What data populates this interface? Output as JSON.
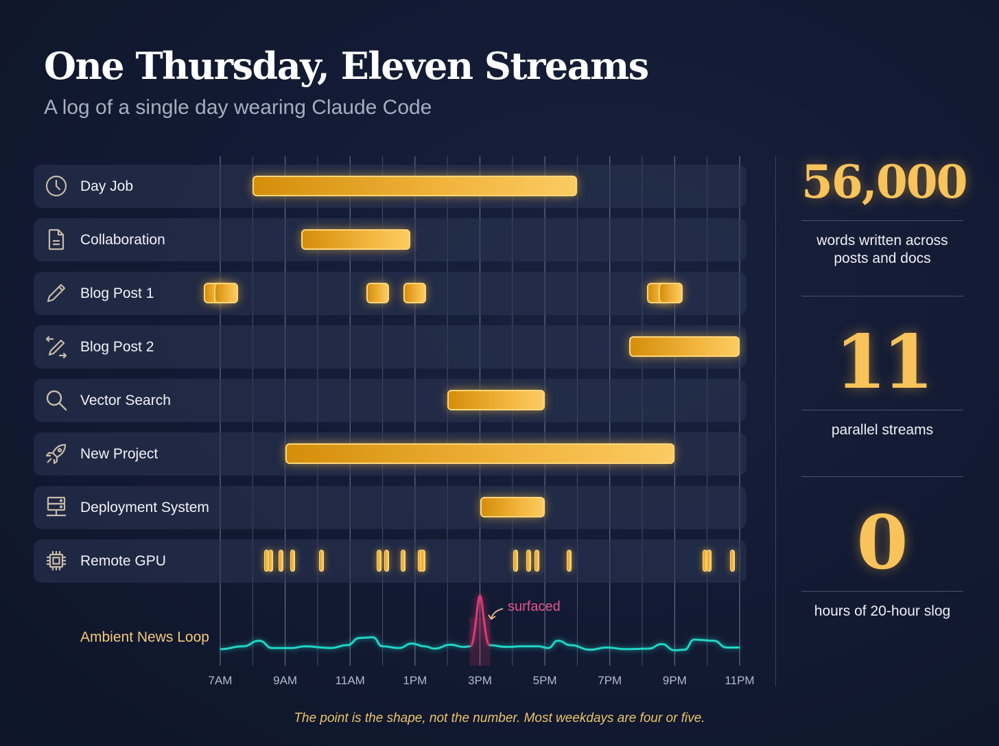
{
  "header": {
    "title": "One Thursday, Eleven Streams",
    "subtitle": "A log of a single day wearing Claude Code"
  },
  "colors": {
    "bar": "#f2b43d",
    "wave": "#1fd6c8",
    "spike": "#e23a74",
    "background": "#121a32"
  },
  "chart_data": {
    "type": "gantt",
    "title": "One Thursday, Eleven Streams",
    "x_unit": "hour of day",
    "xlim": [
      7,
      23
    ],
    "tick_labels": [
      "7AM",
      "9AM",
      "11AM",
      "1PM",
      "3PM",
      "5PM",
      "7PM",
      "9PM",
      "11PM"
    ],
    "tick_values": [
      7,
      9,
      11,
      13,
      15,
      17,
      19,
      21,
      23
    ],
    "grid": true,
    "streams": [
      {
        "name": "Day Job",
        "icon": "clock-icon",
        "segments": [
          [
            8,
            18
          ]
        ]
      },
      {
        "name": "Collaboration",
        "icon": "document-icon",
        "segments": [
          [
            9.5,
            12.85
          ]
        ]
      },
      {
        "name": "Blog Post 1",
        "icon": "pencil-icon",
        "segments": [
          [
            6.5,
            7.2
          ],
          [
            6.8,
            7.55
          ],
          [
            11.5,
            12.2
          ],
          [
            12.65,
            13.35
          ],
          [
            20.15,
            20.9
          ],
          [
            20.5,
            21.25
          ]
        ]
      },
      {
        "name": "Blog Post 2",
        "icon": "pencil-arrows-icon",
        "segments": [
          [
            19.6,
            23
          ]
        ]
      },
      {
        "name": "Vector Search",
        "icon": "search-icon",
        "segments": [
          [
            14,
            17
          ]
        ]
      },
      {
        "name": "New Project",
        "icon": "rocket-icon",
        "segments": [
          [
            9,
            21
          ]
        ]
      },
      {
        "name": "Deployment System",
        "icon": "server-icon",
        "segments": [
          [
            15,
            17
          ]
        ]
      },
      {
        "name": "Remote GPU",
        "icon": "chip-icon",
        "events": [
          8.42,
          8.56,
          8.86,
          9.24,
          10.11,
          11.9,
          12.12,
          12.64,
          13.17,
          13.24,
          16.09,
          16.51,
          16.75,
          17.74,
          21.93,
          22.07,
          22.77
        ]
      }
    ],
    "ambient": {
      "name": "Ambient News Loop",
      "annotation": "surfaced",
      "spike_hour": 15,
      "points": [
        [
          7,
          0.05
        ],
        [
          7.7,
          0.1
        ],
        [
          8.2,
          0.2
        ],
        [
          8.6,
          0.07
        ],
        [
          9.2,
          0.07
        ],
        [
          9.6,
          0.1
        ],
        [
          10.4,
          0.07
        ],
        [
          10.9,
          0.12
        ],
        [
          11.3,
          0.25
        ],
        [
          11.7,
          0.26
        ],
        [
          12,
          0.1
        ],
        [
          12.5,
          0.07
        ],
        [
          12.9,
          0.15
        ],
        [
          13.3,
          0.1
        ],
        [
          13.6,
          0.06
        ],
        [
          14.1,
          0.13
        ],
        [
          14.5,
          0.09
        ],
        [
          14.7,
          0.1
        ],
        [
          15,
          1.0
        ],
        [
          15.3,
          0.12
        ],
        [
          15.8,
          0.09
        ],
        [
          16.3,
          0.1
        ],
        [
          16.8,
          0.1
        ],
        [
          17.1,
          0.07
        ],
        [
          17.4,
          0.2
        ],
        [
          17.8,
          0.12
        ],
        [
          18.4,
          0.04
        ],
        [
          18.9,
          0.08
        ],
        [
          19.5,
          0.05
        ],
        [
          20.2,
          0.06
        ],
        [
          20.6,
          0.14
        ],
        [
          21,
          0.03
        ],
        [
          21.3,
          0.04
        ],
        [
          21.6,
          0.22
        ],
        [
          22.2,
          0.2
        ],
        [
          22.6,
          0.08
        ],
        [
          23,
          0.08
        ]
      ]
    }
  },
  "stats": [
    {
      "value": "56,000",
      "caption_line1": "words written across",
      "caption_line2": "posts and docs"
    },
    {
      "value": "11",
      "caption_line1": "parallel streams"
    },
    {
      "value": "0",
      "caption_line1": "hours of 20-hour slog"
    }
  ],
  "footer": "The point is the shape, not the number. Most weekdays are four or five."
}
